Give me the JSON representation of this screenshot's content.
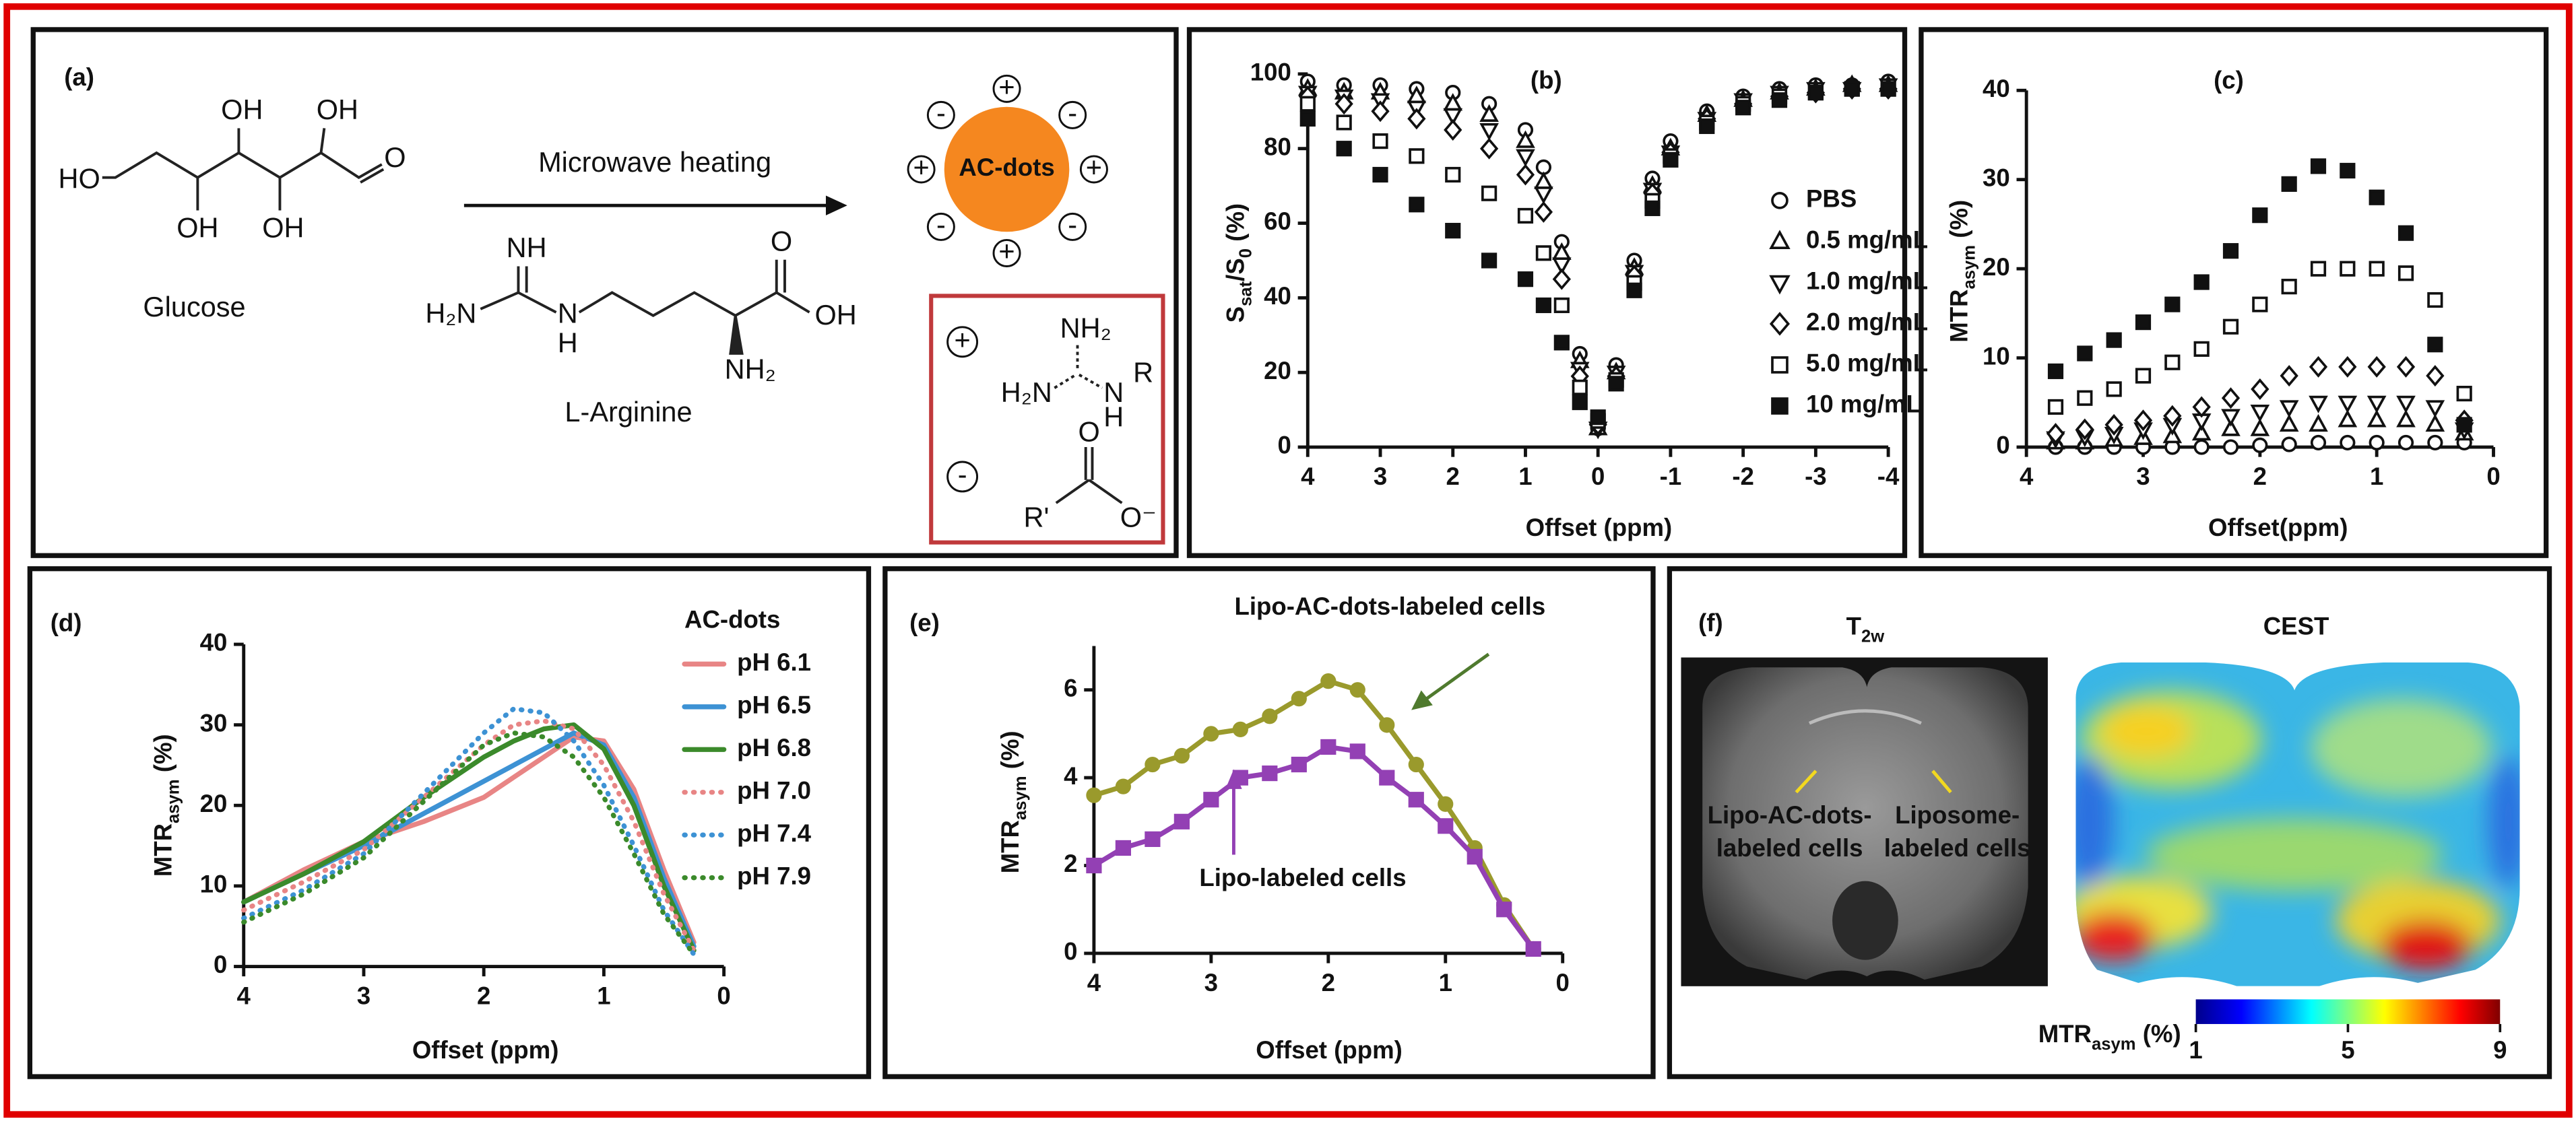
{
  "panel_a": {
    "label": "(a)",
    "glucose": {
      "name": "Glucose",
      "atoms": [
        "HO",
        "OH",
        "OH",
        "OH",
        "OH",
        "O"
      ]
    },
    "reaction": "Microwave heating",
    "arginine": {
      "name": "L-Arginine",
      "atoms": [
        "NH",
        "H₂N",
        "N",
        "H",
        "O",
        "OH",
        "NH₂"
      ]
    },
    "product": {
      "name": "AC-dots",
      "charges": [
        "-",
        "+",
        "-",
        "+",
        "+",
        "-",
        "+",
        "-"
      ]
    },
    "inset": {
      "charges": [
        "+",
        "-"
      ],
      "atoms": [
        "NH₂",
        "H₂N",
        "N",
        "H",
        "R",
        "O",
        "R'",
        "O⁻"
      ]
    }
  },
  "chart_data": [
    {
      "type": "scatter",
      "label": "(b)",
      "xlabel": "Offset (ppm)",
      "ylabel": [
        "S",
        "sat",
        "/S",
        "0",
        " (%)"
      ],
      "xlim": [
        4,
        -4
      ],
      "xticks": [
        4,
        3,
        2,
        1,
        0,
        -1,
        -2,
        -3,
        -4
      ],
      "ylim": [
        0,
        100
      ],
      "yticks": [
        0,
        20,
        40,
        60,
        80,
        100
      ],
      "legend": "right",
      "x": [
        4,
        3.5,
        3,
        2.5,
        2,
        1.5,
        1,
        0.75,
        0.5,
        0.25,
        0,
        -0.25,
        -0.5,
        -0.75,
        -1,
        -1.5,
        -2,
        -2.5,
        -3,
        -3.5,
        -4
      ],
      "series": [
        {
          "name": "PBS",
          "marker": "circle",
          "color": "#111111",
          "values": [
            98,
            97,
            97,
            96,
            95,
            92,
            85,
            75,
            55,
            25,
            5,
            22,
            50,
            72,
            82,
            90,
            94,
            96,
            97,
            97,
            98
          ]
        },
        {
          "name": "0.5 mg/mL",
          "marker": "triangle-up",
          "color": "#111111",
          "values": [
            96,
            95,
            95,
            94,
            92,
            89,
            82,
            71,
            52,
            23,
            5,
            20,
            48,
            70,
            80,
            89,
            93,
            95,
            96,
            97,
            97
          ]
        },
        {
          "name": "1.0 mg/mL",
          "marker": "triangle-down",
          "color": "#111111",
          "values": [
            95,
            94,
            93,
            91,
            89,
            85,
            78,
            68,
            49,
            21,
            5,
            20,
            47,
            69,
            79,
            88,
            93,
            95,
            96,
            96,
            97
          ]
        },
        {
          "name": "2.0 mg/mL",
          "marker": "diamond",
          "color": "#111111",
          "values": [
            94,
            92,
            90,
            88,
            85,
            80,
            73,
            63,
            45,
            19,
            6,
            19,
            46,
            68,
            79,
            88,
            92,
            94,
            95,
            96,
            96
          ]
        },
        {
          "name": "5.0 mg/mL",
          "marker": "square",
          "color": "#111111",
          "values": [
            92,
            87,
            82,
            78,
            73,
            68,
            62,
            52,
            38,
            16,
            7,
            18,
            44,
            66,
            78,
            87,
            92,
            94,
            95,
            96,
            96
          ]
        },
        {
          "name": "10 mg/mL",
          "marker": "square-filled",
          "color": "#111111",
          "values": [
            88,
            80,
            73,
            65,
            58,
            50,
            45,
            38,
            28,
            12,
            8,
            17,
            42,
            64,
            77,
            86,
            91,
            93,
            95,
            96,
            96
          ]
        }
      ]
    },
    {
      "type": "scatter",
      "label": "(c)",
      "xlabel": "Offset(ppm)",
      "ylabel": [
        "MTR",
        "asym",
        " (%)"
      ],
      "xlim": [
        4,
        0
      ],
      "xticks": [
        4,
        3,
        2,
        1,
        0
      ],
      "ylim": [
        0,
        40
      ],
      "yticks": [
        0,
        10,
        20,
        30,
        40
      ],
      "x": [
        3.75,
        3.5,
        3.25,
        3,
        2.75,
        2.5,
        2.25,
        2,
        1.75,
        1.5,
        1.25,
        1,
        0.75,
        0.5,
        0.25
      ],
      "series": [
        {
          "marker": "circle",
          "color": "#111111",
          "values": [
            0,
            0,
            0,
            0,
            0,
            0,
            0,
            0.2,
            0.3,
            0.5,
            0.5,
            0.5,
            0.5,
            0.5,
            0.5
          ]
        },
        {
          "marker": "triangle-up",
          "color": "#111111",
          "values": [
            0.5,
            0.5,
            0.8,
            1,
            1.2,
            1.5,
            2,
            2,
            2.5,
            2.5,
            3,
            3,
            3,
            2.5,
            1.5
          ]
        },
        {
          "marker": "triangle-down",
          "color": "#111111",
          "values": [
            1,
            1.2,
            1.5,
            2,
            2.5,
            3,
            3.5,
            4,
            4.5,
            5,
            5,
            5,
            5,
            4.5,
            2
          ]
        },
        {
          "marker": "diamond",
          "color": "#111111",
          "values": [
            1.5,
            2,
            2.5,
            3,
            3.5,
            4.5,
            5.5,
            6.5,
            8,
            9,
            9,
            9,
            9,
            8,
            3
          ]
        },
        {
          "marker": "square",
          "color": "#111111",
          "values": [
            4.5,
            5.5,
            6.5,
            8,
            9.5,
            11,
            13.5,
            16,
            18,
            20,
            20,
            20,
            19.5,
            16.5,
            6
          ]
        },
        {
          "marker": "square-filled",
          "color": "#111111",
          "values": [
            8.5,
            10.5,
            12,
            14,
            16,
            18.5,
            22,
            26,
            29.5,
            31.5,
            31,
            28,
            24,
            11.5,
            2.5
          ]
        }
      ]
    },
    {
      "type": "line",
      "label": "(d)",
      "xlabel": "Offset (ppm)",
      "ylabel": [
        "MTR",
        "asym",
        " (%)"
      ],
      "xlim": [
        4,
        0
      ],
      "xticks": [
        4,
        3,
        2,
        1,
        0
      ],
      "ylim": [
        0,
        40
      ],
      "yticks": [
        0,
        10,
        20,
        30,
        40
      ],
      "legend": "upper right",
      "legend_title": "AC-dots",
      "x": [
        4,
        3.5,
        3,
        2.5,
        2,
        1.75,
        1.5,
        1.25,
        1,
        0.75,
        0.5,
        0.25
      ],
      "series": [
        {
          "name": "pH 6.1",
          "color": "#e88585",
          "style": "solid",
          "values": [
            8,
            12,
            15.5,
            18,
            21,
            23.5,
            26,
            28.5,
            28,
            22,
            12,
            3
          ]
        },
        {
          "name": "pH 6.5",
          "color": "#3d92d4",
          "style": "solid",
          "values": [
            8,
            11.5,
            15,
            19,
            23,
            25,
            27,
            29,
            27.5,
            21,
            11,
            2.5
          ]
        },
        {
          "name": "pH 6.8",
          "color": "#3b8a2b",
          "style": "solid",
          "values": [
            8,
            11.5,
            15.5,
            21,
            26,
            28,
            29.5,
            30,
            27,
            20,
            10,
            2
          ]
        },
        {
          "name": "pH 7.0",
          "color": "#e88585",
          "style": "dotted",
          "values": [
            7,
            10.5,
            14.5,
            21,
            27.5,
            30,
            30.5,
            29.5,
            25,
            18,
            9,
            2
          ]
        },
        {
          "name": "pH 7.4",
          "color": "#3d92d4",
          "style": "dotted",
          "values": [
            6,
            9.5,
            14,
            21.5,
            29,
            32,
            31.5,
            28,
            22.5,
            15,
            7,
            1.5
          ]
        },
        {
          "name": "pH 7.9",
          "color": "#3b8a2b",
          "style": "dotted",
          "values": [
            5.5,
            9,
            13.5,
            20.5,
            27.5,
            29,
            28.5,
            26,
            21,
            14,
            6.5,
            1.5
          ]
        }
      ]
    },
    {
      "type": "line",
      "label": "(e)",
      "xlabel": "Offset (ppm)",
      "ylabel": [
        "MTR",
        "asym",
        " (%)"
      ],
      "xlim": [
        4,
        0
      ],
      "xticks": [
        4,
        3,
        2,
        1,
        0
      ],
      "ylim": [
        0,
        7
      ],
      "yticks": [
        0,
        2,
        4,
        6
      ],
      "legend": "inline",
      "x": [
        4,
        3.75,
        3.5,
        3.25,
        3,
        2.75,
        2.5,
        2.25,
        2,
        1.75,
        1.5,
        1.25,
        1,
        0.75,
        0.5,
        0.25
      ],
      "series": [
        {
          "name": "Lipo-AC-dots-labeled cells",
          "color": "#9a9a2c",
          "label_color": "#4f7a2e",
          "style": "solid",
          "marker": "circle-filled",
          "values": [
            3.6,
            3.8,
            4.3,
            4.5,
            5.0,
            5.1,
            5.4,
            5.8,
            6.2,
            6.0,
            5.2,
            4.3,
            3.4,
            2.4,
            1.1,
            0.1
          ]
        },
        {
          "name": "Lipo-labeled cells",
          "color": "#9340b4",
          "label_color": "#9340b4",
          "style": "solid",
          "marker": "square-filled",
          "values": [
            2.0,
            2.4,
            2.6,
            3.0,
            3.5,
            4.0,
            4.1,
            4.3,
            4.7,
            4.6,
            4.0,
            3.5,
            2.9,
            2.2,
            1.0,
            0.1
          ]
        }
      ]
    }
  ],
  "panel_f": {
    "label": "(f)",
    "t2w": {
      "title": [
        "T",
        "2w"
      ],
      "annotations": [
        [
          "Lipo-AC-dots-",
          "labeled cells"
        ],
        [
          "Liposome-",
          "labeled cells"
        ]
      ]
    },
    "cest": {
      "title": "CEST"
    },
    "colorbar": {
      "label": [
        "MTR",
        "asym",
        " (%)"
      ],
      "lim": [
        1,
        9
      ],
      "ticks": [
        1,
        5,
        9
      ]
    }
  }
}
